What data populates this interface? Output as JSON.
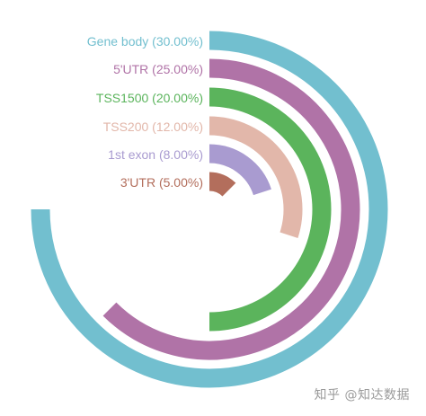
{
  "chart_data": {
    "type": "radial-bar",
    "categories": [
      "Gene body",
      "5'UTR",
      "TSS1500",
      "TSS200",
      "1st exon",
      "3'UTR"
    ],
    "values": [
      30.0,
      25.0,
      20.0,
      12.0,
      8.0,
      5.0
    ],
    "labels": [
      "Gene body (30.00%)",
      "5'UTR (25.00%)",
      "TSS1500 (20.00%)",
      "TSS200 (12.00%)",
      "1st exon (8.00%)",
      "3'UTR (5.00%)"
    ],
    "max_value": 40,
    "colors": [
      "#72bfcf",
      "#b073a7",
      "#5bb45c",
      "#e2b7aa",
      "#a99bd0",
      "#b36e5c"
    ]
  },
  "watermark": "知乎 @知达数据"
}
